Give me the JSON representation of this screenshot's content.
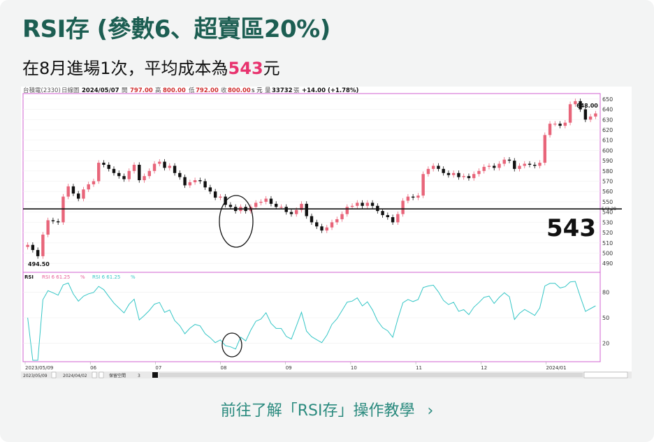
{
  "header": {
    "title": "RSI存 (參數6、超賣區20%)",
    "subtitle_prefix": "在8月進場1次，平均成本為",
    "subtitle_highlight": "543",
    "subtitle_suffix": "元"
  },
  "chart_info": {
    "stock": "台積電(2330)",
    "period": "日線圖",
    "date": "2024/05/07",
    "open_label": "開",
    "open": "797.00",
    "high_label": "高",
    "high": "800.00",
    "low_label": "低",
    "low": "792.00",
    "close_label": "收",
    "close": "800.00",
    "unit_s": "s 元",
    "volume_label": "量",
    "volume": "33732",
    "volume_unit": "張",
    "change": "+14.00 (+1.78%)"
  },
  "chart_annotations": {
    "peak": "648.00",
    "trough": "494.50",
    "cost_line_label": "543",
    "cost_line_small": "543.28"
  },
  "rsi_legend": {
    "name": "RSI",
    "pink": "RSI 6 61.25",
    "cyan": "RSI 6 61.25",
    "pct": "%"
  },
  "bottom_bar": {
    "start": "2023/05/09",
    "end": "2024/04/02",
    "keep": "保留空間",
    "keep_val": "3"
  },
  "cta": {
    "label": "前往了解「RSI存」操作教學",
    "chevron": "›"
  },
  "colors": {
    "title": "#1c5e52",
    "highlight": "#e8336e",
    "cta": "#2a8a7e",
    "up": "#e8657a",
    "down": "#111111",
    "rsi": "#35c6c6",
    "frame": "#d060d0"
  },
  "chart_data": {
    "type": "candlestick",
    "x_tick_labels": [
      "2023/05/09",
      "06",
      "07",
      "08",
      "09",
      "10",
      "11",
      "12",
      "2024/01"
    ],
    "price_axis": [
      650,
      640,
      630,
      620,
      610,
      600,
      590,
      580,
      570,
      560,
      550,
      540,
      530,
      520,
      510,
      500,
      490
    ],
    "ylim": [
      484,
      654
    ],
    "rsi_axis": [
      80,
      50,
      20
    ],
    "rsi_ylim": [
      0,
      100
    ],
    "horizontal_line": 543,
    "close": [
      508,
      503,
      497,
      518,
      532,
      531,
      530,
      555,
      565,
      558,
      553,
      562,
      567,
      570,
      588,
      586,
      582,
      578,
      575,
      572,
      580,
      586,
      571,
      575,
      580,
      587,
      589,
      583,
      585,
      578,
      574,
      566,
      569,
      571,
      570,
      564,
      560,
      554,
      555,
      547,
      545,
      541,
      545,
      541,
      545,
      549,
      550,
      553,
      548,
      545,
      545,
      540,
      538,
      542,
      548,
      536,
      530,
      526,
      522,
      525,
      530,
      533,
      538,
      545,
      546,
      549,
      546,
      549,
      546,
      541,
      537,
      535,
      530,
      538,
      551,
      555,
      554,
      556,
      577,
      582,
      585,
      582,
      578,
      576,
      578,
      574,
      575,
      573,
      577,
      580,
      584,
      585,
      583,
      587,
      591,
      590,
      582,
      585,
      587,
      586,
      585,
      588,
      615,
      626,
      626,
      624,
      627,
      645,
      648,
      640,
      630,
      633,
      636
    ]
  }
}
